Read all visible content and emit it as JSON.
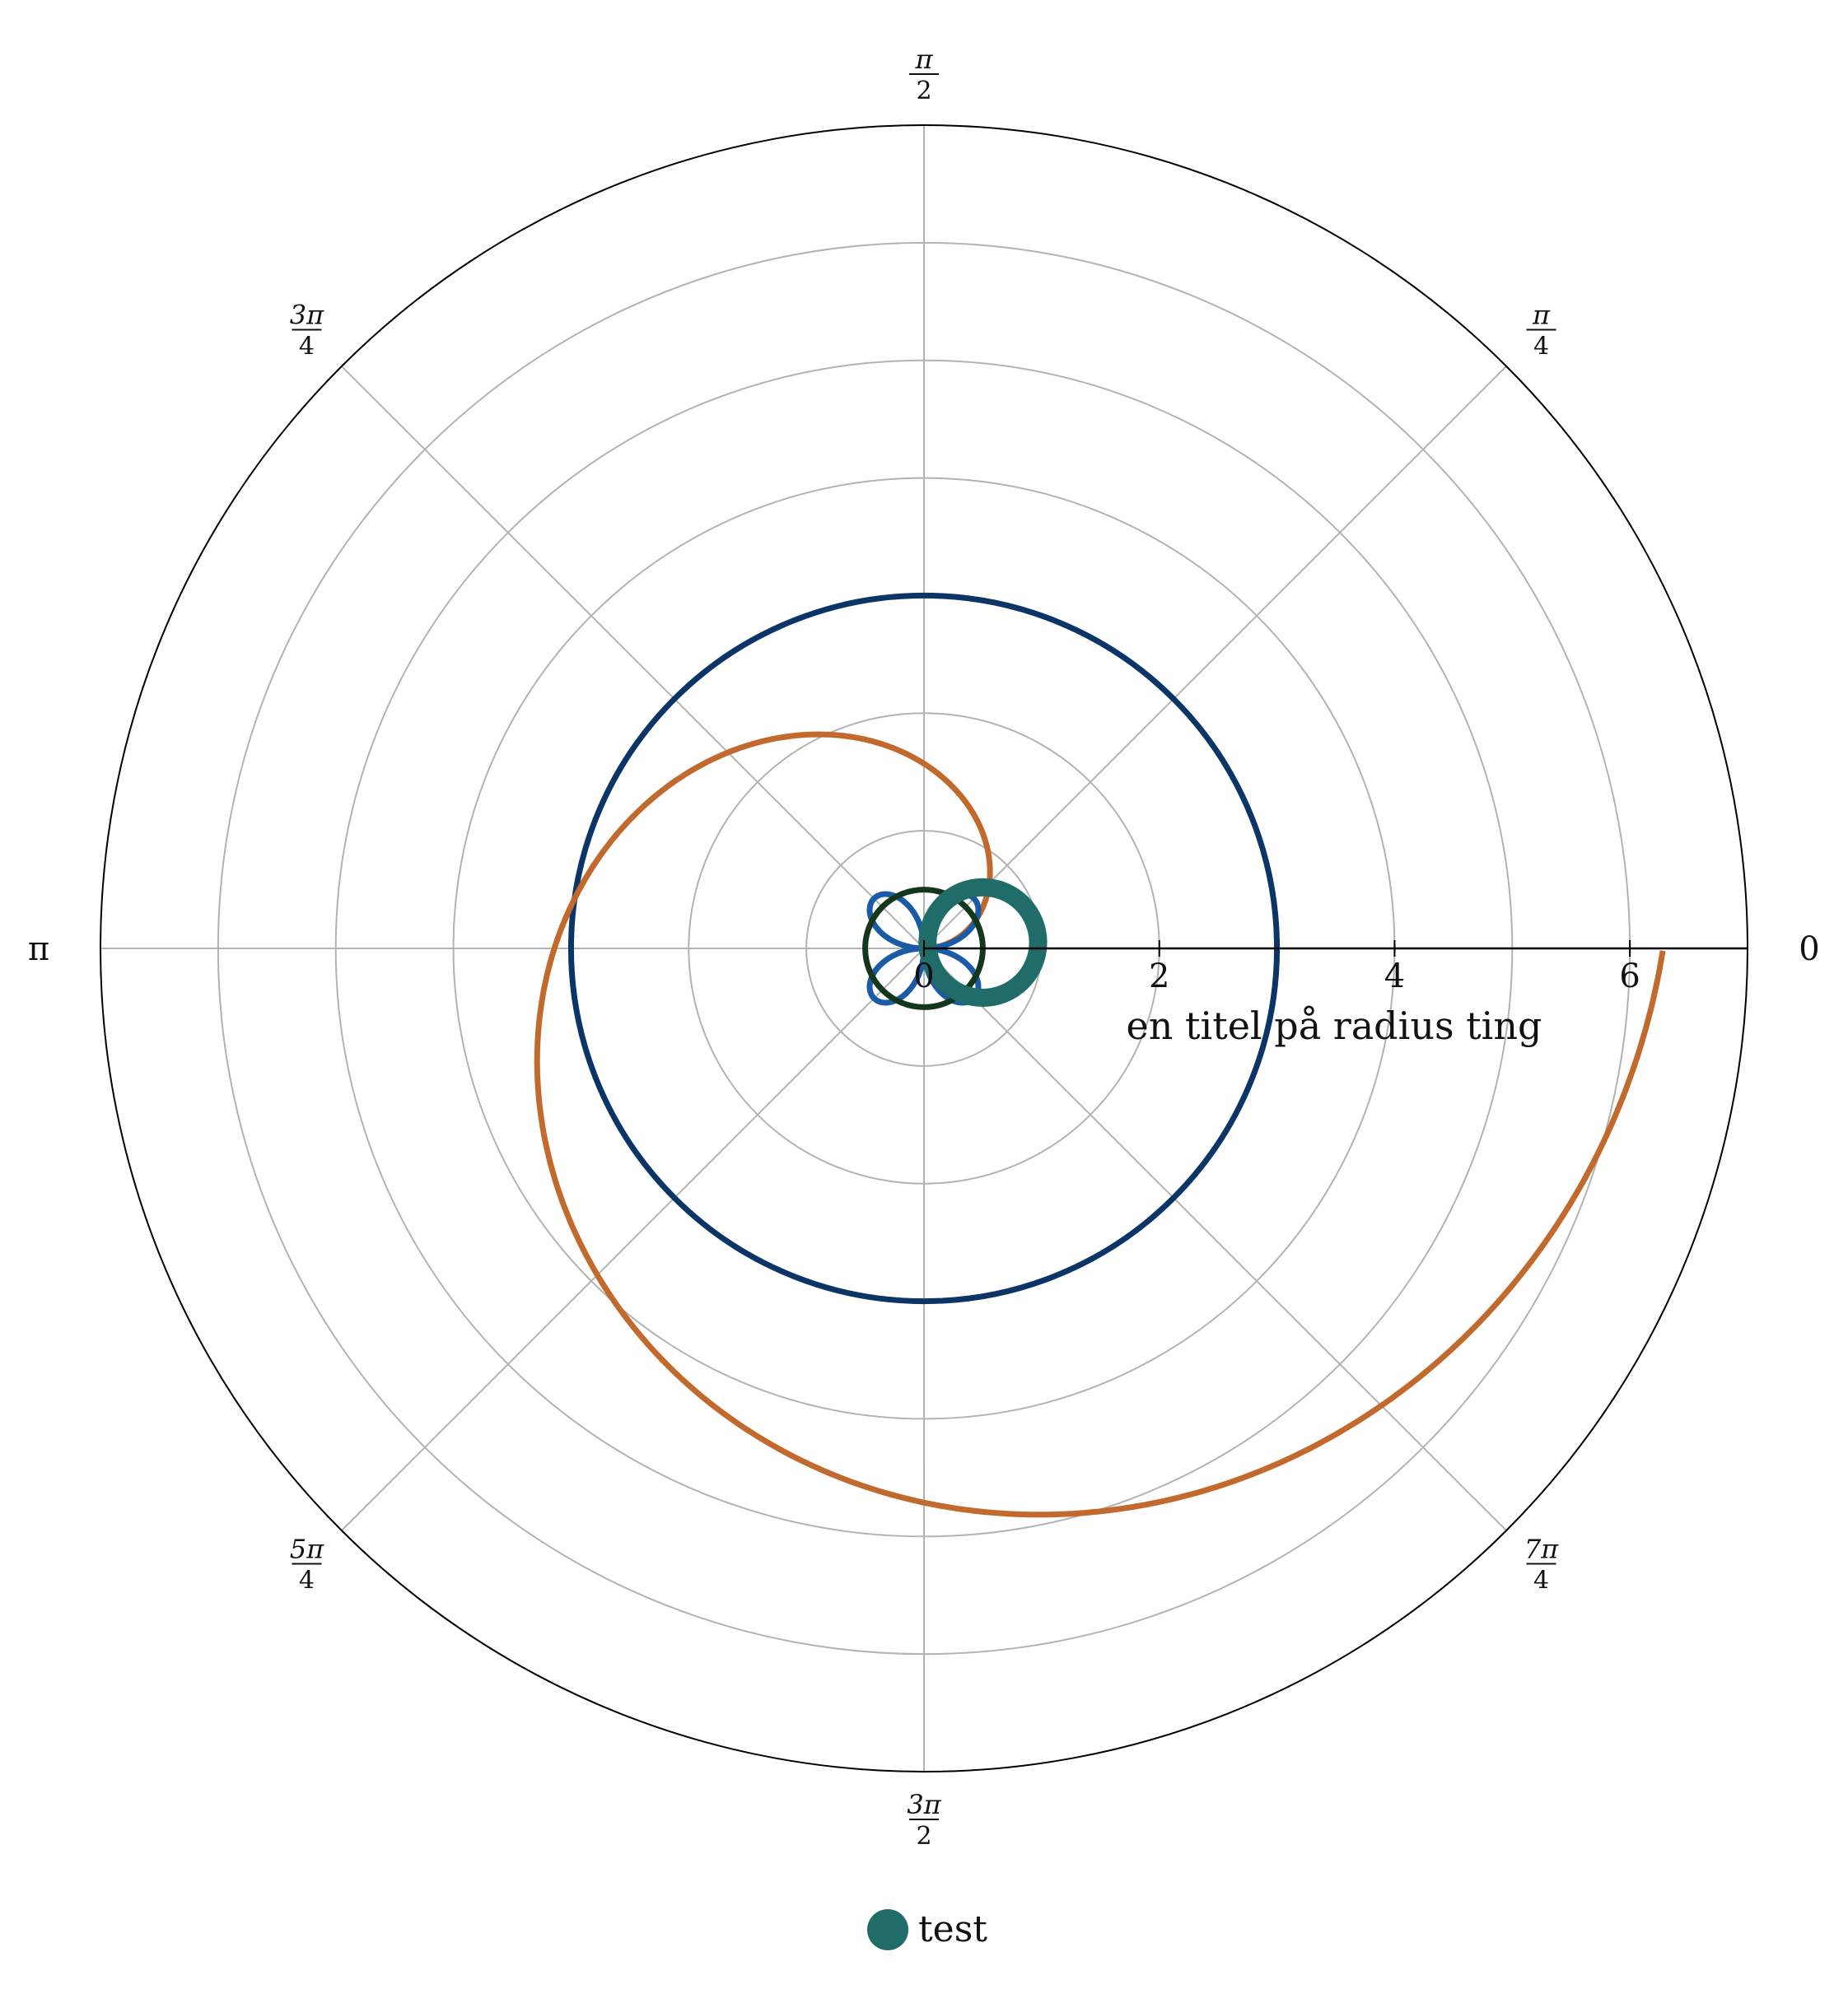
{
  "chart_data": {
    "type": "polar-line",
    "radial_axis": {
      "label": "en titel på radius ting",
      "range": [
        0,
        7
      ],
      "ticks": [
        0,
        2,
        4,
        6
      ],
      "tick_labels": [
        "0",
        "2",
        "4",
        "6"
      ],
      "grid": true,
      "grid_circles": [
        1,
        2,
        3,
        4,
        5,
        6
      ]
    },
    "angular_axis": {
      "unit": "radians",
      "grid": true,
      "ticks": [
        {
          "angle": 0,
          "num": "0",
          "den": ""
        },
        {
          "angle": 0.7854,
          "num": "π",
          "den": "4"
        },
        {
          "angle": 1.5708,
          "num": "π",
          "den": "2"
        },
        {
          "angle": 2.3562,
          "num": "3π",
          "den": "4"
        },
        {
          "angle": 3.1416,
          "num": "π",
          "den": ""
        },
        {
          "angle": 3.927,
          "num": "5π",
          "den": "4"
        },
        {
          "angle": 4.7124,
          "num": "3π",
          "den": "2"
        },
        {
          "angle": 5.4978,
          "num": "7π",
          "den": "4"
        }
      ]
    },
    "series": [
      {
        "kind": "circle-centered",
        "r": 3,
        "color": "#0b3566"
      },
      {
        "kind": "archimedean-spiral",
        "a": 1,
        "theta_range": [
          0,
          6.283
        ],
        "color": "#c26a2e"
      },
      {
        "kind": "figure-eight",
        "a": 0.6,
        "theta_range": [
          0,
          6.283
        ],
        "color": "#1a5aa6"
      },
      {
        "kind": "circle-centered",
        "r": 0.5,
        "color": "#14361a"
      },
      {
        "name": "test",
        "kind": "circle-offset",
        "cx": 0.5,
        "cy": 0.05,
        "r": 0.47,
        "color": "#206c68"
      }
    ],
    "legend": {
      "position": "bottom-center",
      "entries": [
        {
          "label": "test",
          "color": "#206c68"
        }
      ]
    }
  }
}
